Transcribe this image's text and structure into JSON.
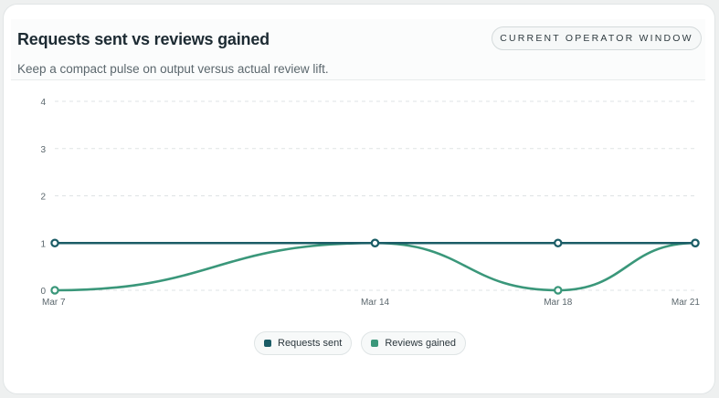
{
  "panel": {
    "title": "Requests sent vs reviews gained",
    "subtitle": "Keep a compact pulse on output versus actual review lift.",
    "window_label": "CURRENT OPERATOR WINDOW"
  },
  "colors": {
    "requests": "#1b5c66",
    "reviews": "#3a977a",
    "grid": "#dfe3e4"
  },
  "chart_data": {
    "type": "line",
    "categories": [
      "Mar 7",
      "Mar 14",
      "Mar 18",
      "Mar 21"
    ],
    "series": [
      {
        "name": "Requests sent",
        "values": [
          1,
          1,
          1,
          1
        ]
      },
      {
        "name": "Reviews gained",
        "values": [
          0,
          1,
          0,
          1
        ]
      }
    ],
    "yticks": [
      "0",
      "1",
      "2",
      "3",
      "4"
    ],
    "ylim": [
      0,
      4
    ],
    "grid": true,
    "legend": "bottom-center"
  }
}
